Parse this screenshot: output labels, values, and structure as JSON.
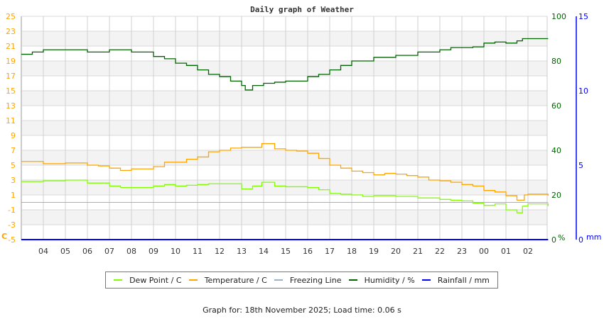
{
  "chart_data": {
    "type": "line",
    "title": "Daily graph of Weather",
    "x_tick_labels": [
      "04",
      "05",
      "06",
      "07",
      "08",
      "09",
      "10",
      "11",
      "12",
      "13",
      "14",
      "15",
      "16",
      "17",
      "18",
      "19",
      "20",
      "21",
      "22",
      "23",
      "00",
      "01",
      "02"
    ],
    "left_axis": {
      "label": "C",
      "range": [
        -5,
        25
      ],
      "ticks": [
        -5,
        -3,
        -1,
        1,
        3,
        5,
        7,
        9,
        11,
        13,
        15,
        17,
        19,
        21,
        23,
        25
      ],
      "color": "#ffa500"
    },
    "right_axis_humidity": {
      "label": "%",
      "range": [
        0,
        100
      ],
      "ticks": [
        0,
        20,
        40,
        60,
        80,
        100
      ],
      "color": "#006400"
    },
    "right_axis_rain": {
      "label": "mm",
      "range": [
        0,
        15
      ],
      "ticks": [
        0,
        5,
        10,
        15
      ],
      "color": "#0000ff"
    },
    "grid": true,
    "legend_position": "bottom",
    "series": [
      {
        "name": "Dew Point / C",
        "color": "#80ff00",
        "axis": "left",
        "x": [
          "03:00",
          "04:00",
          "05:00",
          "06:00",
          "07:00",
          "07:30",
          "08:00",
          "09:00",
          "09:30",
          "10:00",
          "10:30",
          "11:00",
          "11:30",
          "12:00",
          "12:30",
          "13:00",
          "13:30",
          "13:55",
          "14:30",
          "15:00",
          "15:30",
          "16:00",
          "16:30",
          "17:00",
          "17:30",
          "18:00",
          "18:30",
          "19:00",
          "19:30",
          "20:00",
          "21:00",
          "22:00",
          "22:30",
          "23:00",
          "23:30",
          "00:00",
          "00:30",
          "01:00",
          "01:30",
          "01:45",
          "02:00",
          "02:55"
        ],
        "values": [
          2.8,
          2.9,
          3.0,
          2.6,
          2.2,
          2.0,
          2.0,
          2.2,
          2.4,
          2.2,
          2.3,
          2.4,
          2.5,
          2.5,
          2.5,
          1.8,
          2.2,
          2.7,
          2.2,
          2.1,
          2.1,
          2.0,
          1.7,
          1.2,
          1.1,
          1.0,
          0.8,
          0.9,
          0.9,
          0.8,
          0.6,
          0.4,
          0.3,
          0.2,
          -0.1,
          -0.4,
          -0.2,
          -1.0,
          -1.4,
          -0.5,
          -0.2,
          -0.5
        ]
      },
      {
        "name": "Temperature / C",
        "color": "#ffa500",
        "axis": "left",
        "x": [
          "03:00",
          "04:00",
          "05:00",
          "06:00",
          "06:30",
          "07:00",
          "07:30",
          "08:00",
          "08:30",
          "09:00",
          "09:30",
          "10:00",
          "10:30",
          "11:00",
          "11:30",
          "12:00",
          "12:30",
          "13:00",
          "13:30",
          "13:55",
          "14:30",
          "15:00",
          "15:30",
          "16:00",
          "16:30",
          "17:00",
          "17:30",
          "18:00",
          "18:30",
          "19:00",
          "19:30",
          "20:00",
          "20:30",
          "21:00",
          "21:30",
          "22:00",
          "22:30",
          "23:00",
          "23:30",
          "00:00",
          "00:30",
          "01:00",
          "01:30",
          "01:50",
          "02:00",
          "02:55"
        ],
        "values": [
          5.5,
          5.2,
          5.3,
          5.0,
          4.9,
          4.6,
          4.3,
          4.5,
          4.5,
          4.8,
          5.4,
          5.4,
          5.8,
          6.1,
          6.8,
          7.0,
          7.3,
          7.4,
          7.4,
          7.9,
          7.2,
          7.0,
          6.9,
          6.6,
          5.9,
          5.0,
          4.6,
          4.2,
          4.0,
          3.7,
          3.9,
          3.8,
          3.6,
          3.4,
          3.0,
          2.9,
          2.7,
          2.4,
          2.2,
          1.6,
          1.4,
          0.9,
          0.3,
          1.0,
          1.1,
          0.9
        ]
      },
      {
        "name": "Freezing Line",
        "color": "#a0b0c8",
        "axis": "left",
        "x": [
          "03:00",
          "02:55"
        ],
        "values": [
          0,
          0
        ]
      },
      {
        "name": "Humidity / %",
        "color": "#006400",
        "axis": "humidity",
        "x": [
          "03:00",
          "03:30",
          "04:00",
          "06:00",
          "07:00",
          "08:00",
          "09:00",
          "09:30",
          "10:00",
          "10:30",
          "11:00",
          "11:30",
          "12:00",
          "12:30",
          "13:00",
          "13:10",
          "13:30",
          "14:00",
          "14:30",
          "15:00",
          "16:00",
          "16:30",
          "17:00",
          "17:30",
          "18:00",
          "19:00",
          "20:00",
          "21:00",
          "22:00",
          "22:30",
          "23:00",
          "23:30",
          "00:00",
          "00:30",
          "01:00",
          "01:30",
          "01:45",
          "02:55"
        ],
        "values": [
          83,
          84,
          85,
          84,
          85,
          84,
          82,
          81,
          79,
          78,
          76,
          74,
          73,
          71,
          69,
          67,
          69,
          70,
          70.5,
          71,
          73,
          74,
          76,
          78,
          80,
          81.6,
          82.5,
          84,
          85,
          86,
          86,
          86.3,
          88,
          88.5,
          88,
          89,
          90,
          90
        ]
      },
      {
        "name": "Rainfall / mm",
        "color": "#0000ff",
        "axis": "rain",
        "x": [
          "03:00",
          "02:55"
        ],
        "values": [
          0,
          0
        ]
      }
    ]
  },
  "footer": "Graph for: 18th November 2025; Load time: 0.06 s"
}
